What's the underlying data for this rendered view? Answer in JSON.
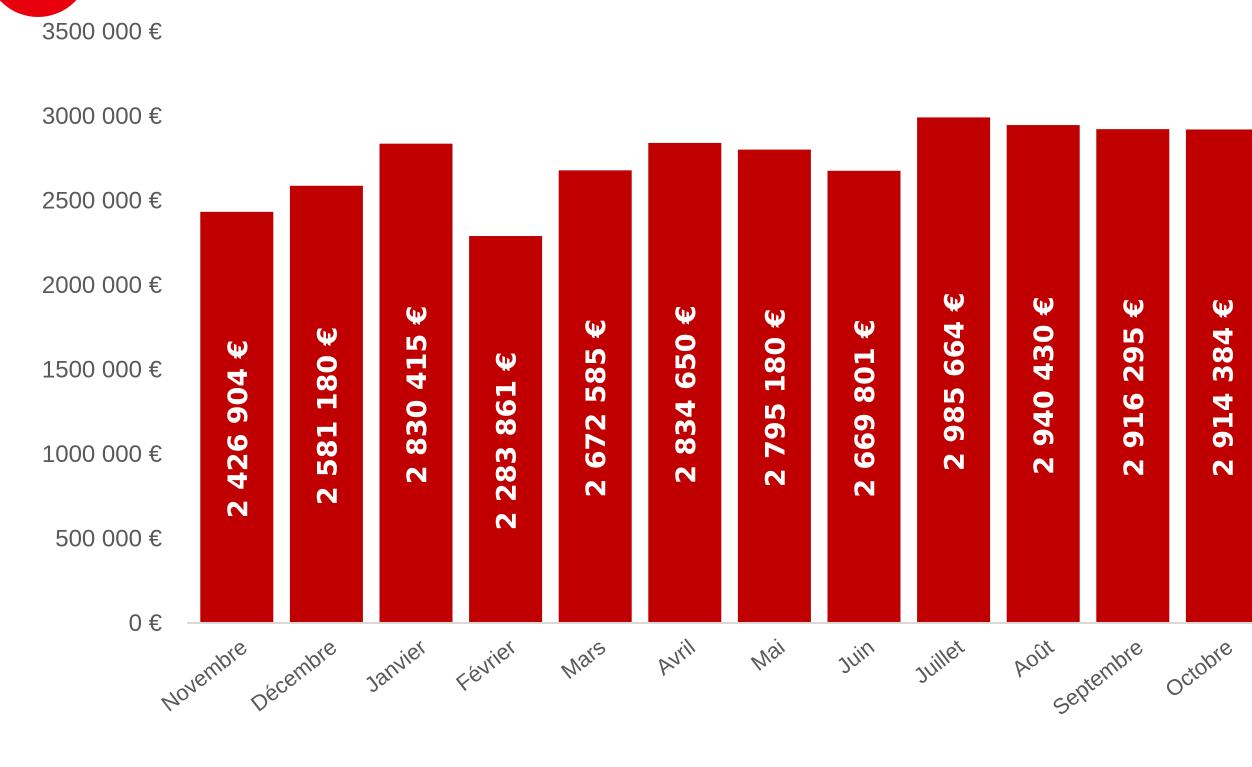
{
  "chart_data": {
    "type": "bar",
    "categories": [
      "Novembre",
      "Décembre",
      "Janvier",
      "Février",
      "Mars",
      "Avril",
      "Mai",
      "Juin",
      "Juillet",
      "Août",
      "Septembre",
      "Octobre"
    ],
    "values": [
      2426904,
      2581180,
      2830415,
      2283861,
      2672585,
      2834650,
      2795180,
      2669801,
      2985664,
      2940430,
      2916295,
      2914384
    ],
    "data_labels": [
      "2 426 904 €",
      "2 581 180 €",
      "2 830 415 €",
      "2 283 861 €",
      "2 672 585 €",
      "2 834 650 €",
      "2 795 180 €",
      "2 669 801 €",
      "2 985 664 €",
      "2 940 430 €",
      "2 916 295 €",
      "2 914 384 €"
    ],
    "y_ticks": [
      0,
      500000,
      1000000,
      1500000,
      2000000,
      2500000,
      3000000,
      3500000
    ],
    "y_tick_labels": [
      "0 €",
      "500 000 €",
      "1000 000 €",
      "1500 000 €",
      "2000 000 €",
      "2500 000 €",
      "3000 000 €",
      "3500 000 €"
    ],
    "ylim": [
      0,
      3500000
    ],
    "grid": false,
    "bar_color": "#C00000",
    "badge_color": "#E8000D"
  }
}
